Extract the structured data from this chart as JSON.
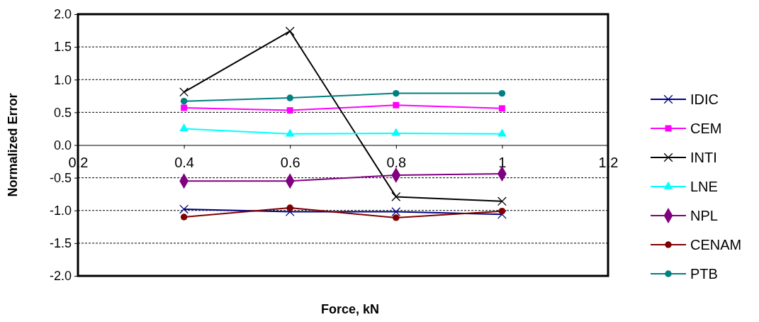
{
  "chart_data": {
    "type": "line",
    "xlabel": "Force, kN",
    "ylabel": "Normalized Error",
    "x": [
      0.4,
      0.6,
      0.8,
      1
    ],
    "xlim": [
      0.2,
      1.2
    ],
    "xticks": [
      0.2,
      0.4,
      0.6,
      0.8,
      1,
      1.2
    ],
    "ylim": [
      -2,
      2
    ],
    "yticks": [
      {
        "value": -2,
        "label": "-2.0"
      },
      -1.5,
      {
        "value": -1,
        "label": "-1.0"
      },
      -0.5,
      {
        "value": 0,
        "label": "0.0"
      },
      0.5,
      {
        "value": 1,
        "label": "1.0"
      },
      1.5,
      {
        "value": 2,
        "label": "2.0"
      }
    ],
    "grid": "y",
    "legend": "right",
    "series": [
      {
        "name": "IDIC",
        "color": "#000080",
        "marker": "cross",
        "values": [
          -0.98,
          -1.02,
          -1.02,
          -1.06
        ]
      },
      {
        "name": "CEM",
        "color": "#ff00ff",
        "marker": "square",
        "values": [
          0.57,
          0.53,
          0.61,
          0.56
        ]
      },
      {
        "name": "INTI",
        "color": "#000000",
        "marker": "cross",
        "values": [
          0.81,
          1.74,
          -0.79,
          -0.86
        ]
      },
      {
        "name": "LNE",
        "color": "#00ffff",
        "marker": "triangle",
        "values": [
          0.25,
          0.17,
          0.18,
          0.17
        ]
      },
      {
        "name": "NPL",
        "color": "#800080",
        "marker": "diamond",
        "values": [
          -0.55,
          -0.55,
          -0.46,
          -0.44
        ]
      },
      {
        "name": "CENAM",
        "color": "#800000",
        "marker": "circle",
        "values": [
          -1.1,
          -0.96,
          -1.11,
          -1.01
        ]
      },
      {
        "name": "PTB",
        "color": "#008080",
        "marker": "circle",
        "values": [
          0.67,
          0.72,
          0.79,
          0.79
        ]
      }
    ]
  }
}
